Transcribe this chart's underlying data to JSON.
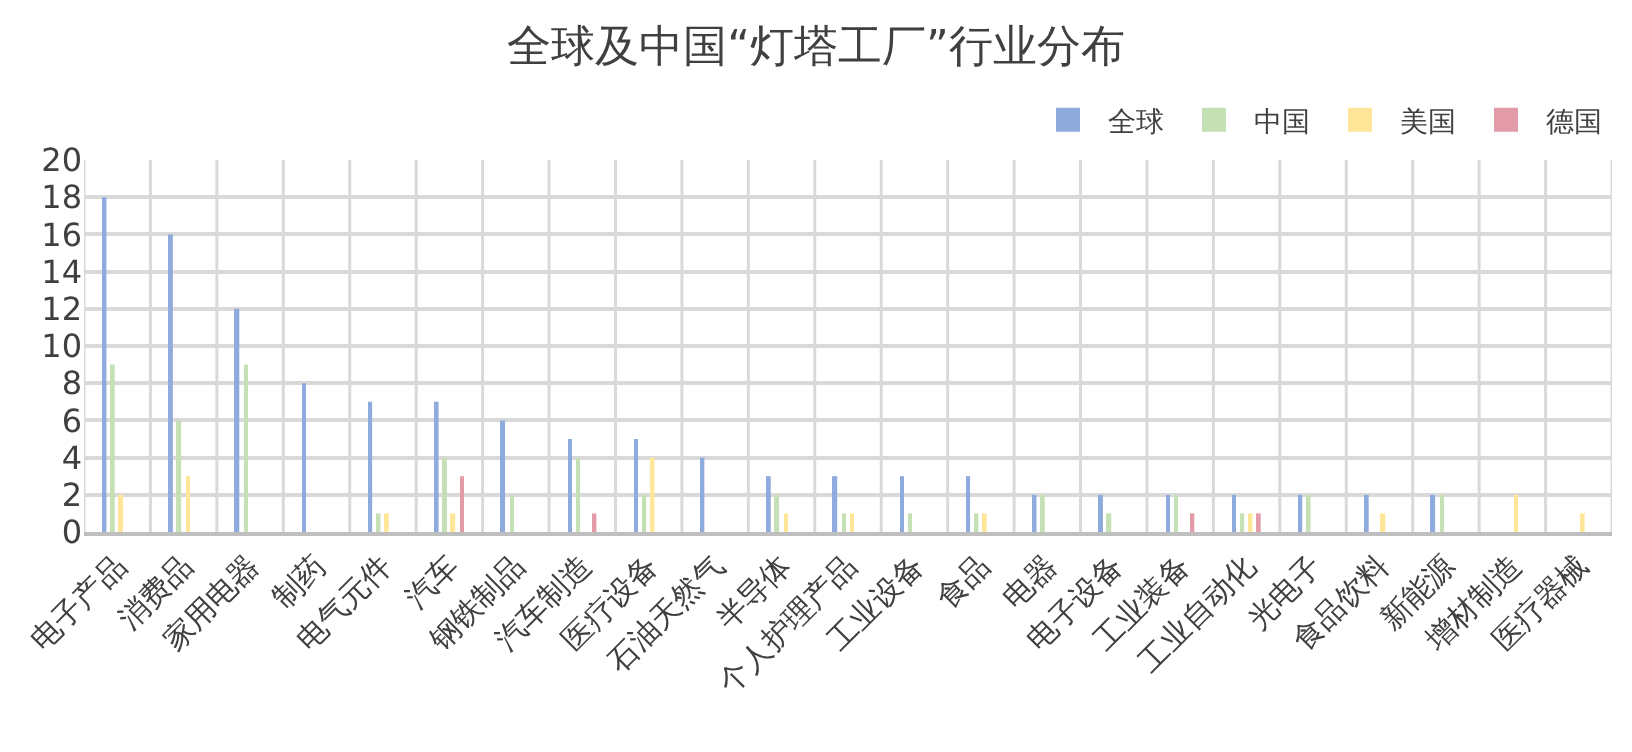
{
  "chart_data": {
    "type": "bar",
    "title": "全球及中国“灯塔工厂”行业分布",
    "categories": [
      "电子产品",
      "消费品",
      "家用电器",
      "制药",
      "电气元件",
      "汽车",
      "钢铁制品",
      "汽车制造",
      "医疗设备",
      "石油天然气",
      "半导体",
      "个人护理产品",
      "工业设备",
      "食品",
      "电器",
      "电子设备",
      "工业装备",
      "工业自动化",
      "光电子",
      "食品饮料",
      "新能源",
      "增材制造",
      "医疗器械"
    ],
    "series": [
      {
        "name": "全球",
        "color": "#8faadc",
        "values": [
          18,
          16,
          12,
          8,
          7,
          7,
          6,
          5,
          5,
          4,
          3,
          3,
          3,
          3,
          2,
          2,
          2,
          2,
          2,
          2,
          2,
          0,
          0
        ]
      },
      {
        "name": "中国",
        "color": "#c5e0b4",
        "values": [
          9,
          6,
          9,
          0,
          1,
          4,
          2,
          4,
          2,
          0,
          2,
          1,
          1,
          1,
          2,
          1,
          2,
          1,
          2,
          0,
          2,
          0,
          0
        ]
      },
      {
        "name": "美国",
        "color": "#ffe699",
        "values": [
          2,
          3,
          0,
          0,
          1,
          1,
          0,
          0,
          4,
          0,
          1,
          1,
          0,
          1,
          0,
          0,
          0,
          1,
          0,
          1,
          0,
          2,
          1
        ]
      },
      {
        "name": "德国",
        "color": "#e39ba8",
        "values": [
          0,
          0,
          0,
          0,
          0,
          3,
          0,
          1,
          0,
          0,
          0,
          0,
          0,
          0,
          0,
          0,
          1,
          1,
          0,
          0,
          0,
          0,
          0
        ]
      }
    ],
    "ylim": [
      0,
      20
    ],
    "yticks": [
      0,
      2,
      4,
      6,
      8,
      10,
      12,
      14,
      16,
      18,
      20
    ],
    "grid": true,
    "legend": "top right"
  }
}
